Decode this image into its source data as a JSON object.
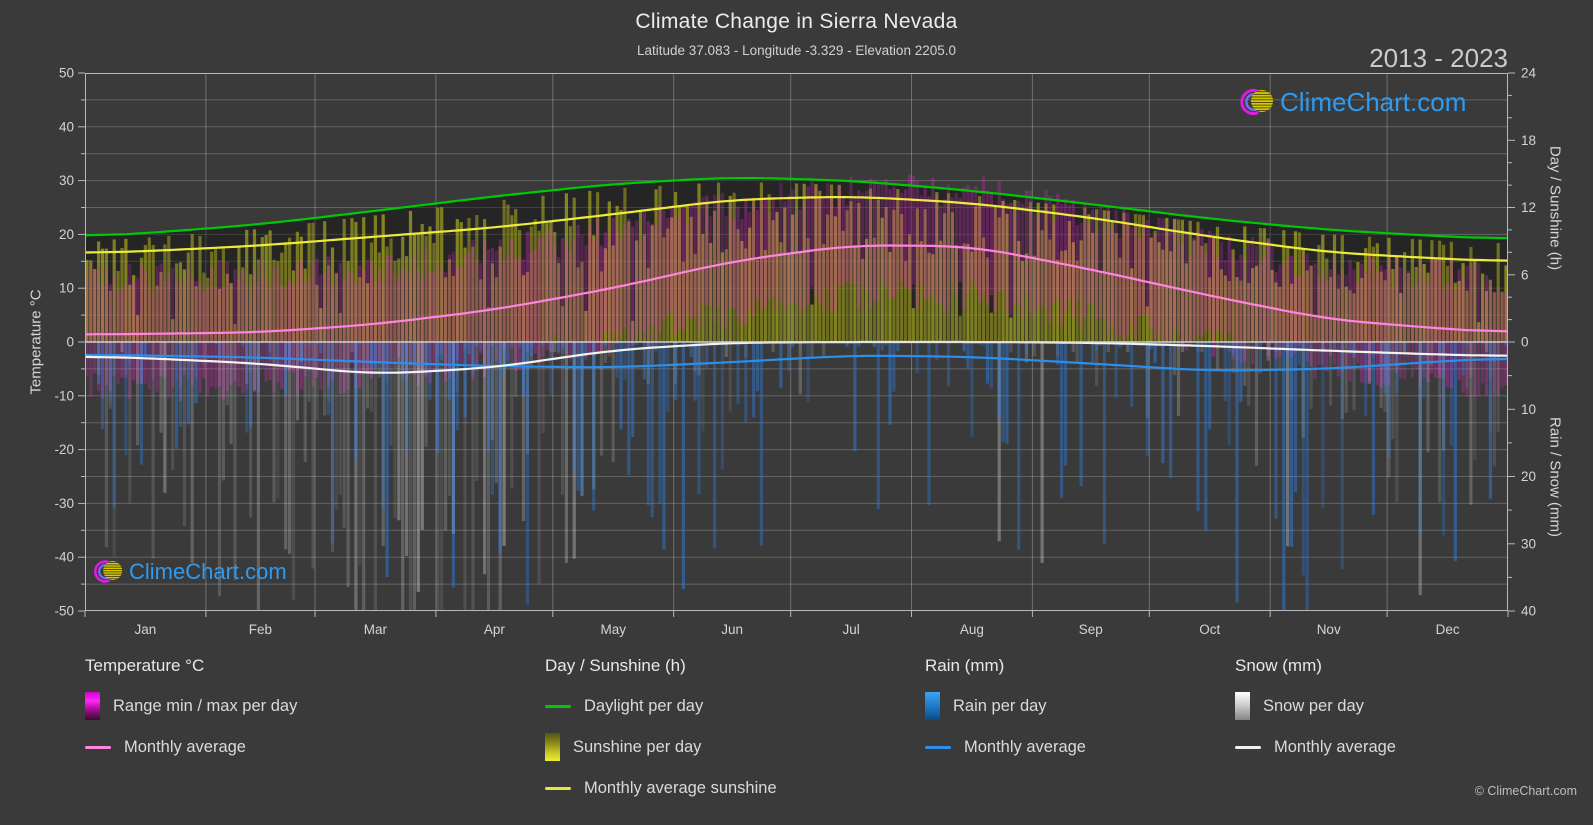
{
  "header": {
    "title": "Climate Change in Sierra Nevada",
    "subtitle": "Latitude 37.083 - Longitude -3.329 - Elevation 2205.0",
    "year_range": "2013 - 2023"
  },
  "watermark": {
    "logo_text": "ClimeChart.com",
    "copyright": "© ClimeChart.com"
  },
  "axes": {
    "left": {
      "label": "Temperature °C",
      "ticks": [
        50,
        40,
        30,
        20,
        10,
        0,
        -10,
        -20,
        -30,
        -40,
        -50
      ],
      "range": [
        -50,
        50
      ]
    },
    "right_top": {
      "label": "Day / Sunshine (h)",
      "ticks": [
        24,
        18,
        12,
        6,
        0
      ],
      "range": [
        0,
        24
      ]
    },
    "right_bottom": {
      "label": "Rain / Snow (mm)",
      "ticks": [
        10,
        20,
        30,
        40
      ],
      "range": [
        0,
        40
      ],
      "direction": "down"
    },
    "x": {
      "months": [
        "Jan",
        "Feb",
        "Mar",
        "Apr",
        "May",
        "Jun",
        "Jul",
        "Aug",
        "Sep",
        "Oct",
        "Nov",
        "Dec"
      ],
      "days_in_month": [
        31,
        28,
        31,
        30,
        31,
        30,
        31,
        31,
        30,
        31,
        30,
        31
      ]
    }
  },
  "legend": {
    "groups": [
      {
        "title": "Temperature °C",
        "items": [
          {
            "label": "Range min / max per day",
            "swatch": "gradient-magenta"
          },
          {
            "label": "Monthly average",
            "swatch": "line-pink"
          }
        ]
      },
      {
        "title": "Day / Sunshine (h)",
        "items": [
          {
            "label": "Daylight per day",
            "swatch": "line-green"
          },
          {
            "label": "Sunshine per day",
            "swatch": "gradient-yellow"
          },
          {
            "label": "Monthly average sunshine",
            "swatch": "line-yellow"
          }
        ]
      },
      {
        "title": "Rain (mm)",
        "items": [
          {
            "label": "Rain per day",
            "swatch": "gradient-blue"
          },
          {
            "label": "Monthly average",
            "swatch": "line-blue"
          }
        ]
      },
      {
        "title": "Snow (mm)",
        "items": [
          {
            "label": "Snow per day",
            "swatch": "gradient-white"
          },
          {
            "label": "Monthly average",
            "swatch": "line-white"
          }
        ]
      }
    ]
  },
  "colors": {
    "background": "#3a3a3a",
    "grid": "#ffffff",
    "spine": "#b8b8b8",
    "tick_label": "#d4d4d4",
    "zero_line": "#dcdcdc",
    "daylight_line": "#00c805",
    "daylight_fill": "rgba(0,0,0,0.35)",
    "sunshine_line": "#ecec3c",
    "sunshine_bar": "205,205,30",
    "temp_line": "#ff84e0",
    "temp_bar": "255,40,225",
    "rain_line": "#2e8fe8",
    "rain_bar": "45,130,235",
    "snow_line": "#f2f2f2",
    "snow_bar": "235,235,235",
    "logo_text": "#2f9bf0"
  },
  "chart_data": {
    "type": "area",
    "subtype": "climate-composite",
    "title": "Climate Change in Sierra Nevada",
    "period": "2013 - 2023",
    "x": [
      "Jan",
      "Feb",
      "Mar",
      "Apr",
      "May",
      "Jun",
      "Jul",
      "Aug",
      "Sep",
      "Oct",
      "Nov",
      "Dec"
    ],
    "axis_ranges": {
      "temperature_c": [
        -50,
        50
      ],
      "day_sunshine_h": [
        0,
        24
      ],
      "rain_snow_mm": [
        0,
        40
      ]
    },
    "grid": "on",
    "legend_position": "bottom",
    "series": [
      {
        "id": "daylight",
        "name": "Daylight per day",
        "unit": "h",
        "axis": "day_sunshine_h",
        "render": "line",
        "values": [
          9.7,
          10.5,
          11.7,
          13.0,
          14.1,
          14.7,
          14.4,
          13.5,
          12.3,
          11.0,
          10.0,
          9.4
        ]
      },
      {
        "id": "sunshine_avg",
        "name": "Monthly average sunshine",
        "unit": "h",
        "axis": "day_sunshine_h",
        "render": "line",
        "values": [
          8.1,
          8.6,
          9.4,
          10.2,
          11.4,
          12.7,
          13.0,
          12.4,
          11.1,
          9.4,
          8.0,
          7.4
        ]
      },
      {
        "id": "sunshine_daily",
        "name": "Sunshine per day",
        "unit": "h",
        "axis": "day_sunshine_h",
        "render": "daily-bars",
        "monthly_mean": [
          8.1,
          8.6,
          9.4,
          10.2,
          11.4,
          12.7,
          13.0,
          12.4,
          11.1,
          9.4,
          8.0,
          7.4
        ]
      },
      {
        "id": "temp_avg",
        "name": "Monthly average",
        "unit": "°C",
        "axis": "temperature_c",
        "render": "line",
        "values": [
          1.5,
          1.8,
          3.3,
          6.0,
          10.0,
          15.0,
          18.0,
          17.8,
          13.5,
          8.6,
          4.2,
          2.4
        ]
      },
      {
        "id": "temp_range_daily",
        "name": "Range min / max per day",
        "unit": "°C",
        "axis": "temperature_c",
        "render": "daily-bars",
        "monthly_min": [
          -4.0,
          -3.9,
          -2.2,
          0.5,
          4.5,
          9.5,
          12.5,
          12.4,
          8.5,
          3.8,
          -0.8,
          -3.0
        ],
        "monthly_max": [
          8.0,
          8.3,
          9.8,
          12.5,
          16.5,
          21.5,
          24.5,
          24.3,
          19.5,
          14.5,
          10.0,
          8.5
        ]
      },
      {
        "id": "rain_avg",
        "name": "Monthly average",
        "unit": "mm",
        "axis": "rain_snow_mm",
        "render": "line",
        "values": [
          2.0,
          2.3,
          3.0,
          3.6,
          3.8,
          3.0,
          2.0,
          2.2,
          3.2,
          4.3,
          4.0,
          2.8
        ]
      },
      {
        "id": "rain_daily",
        "name": "Rain per day",
        "unit": "mm",
        "axis": "rain_snow_mm",
        "render": "daily-bars",
        "monthly_mean": [
          2.0,
          2.3,
          3.0,
          3.6,
          3.8,
          3.0,
          2.0,
          2.2,
          3.2,
          4.3,
          4.0,
          2.8
        ]
      },
      {
        "id": "snow_avg",
        "name": "Monthly average",
        "unit": "mm",
        "axis": "rain_snow_mm",
        "render": "line",
        "values": [
          2.4,
          3.2,
          4.8,
          3.8,
          1.2,
          0.1,
          0.0,
          0.0,
          0.1,
          0.6,
          1.3,
          1.9
        ]
      },
      {
        "id": "snow_daily",
        "name": "Snow per day",
        "unit": "mm",
        "axis": "rain_snow_mm",
        "render": "daily-bars",
        "monthly_mean": [
          2.4,
          3.2,
          4.8,
          3.8,
          1.2,
          0.1,
          0.0,
          0.0,
          0.1,
          0.6,
          1.3,
          1.9
        ]
      }
    ]
  }
}
